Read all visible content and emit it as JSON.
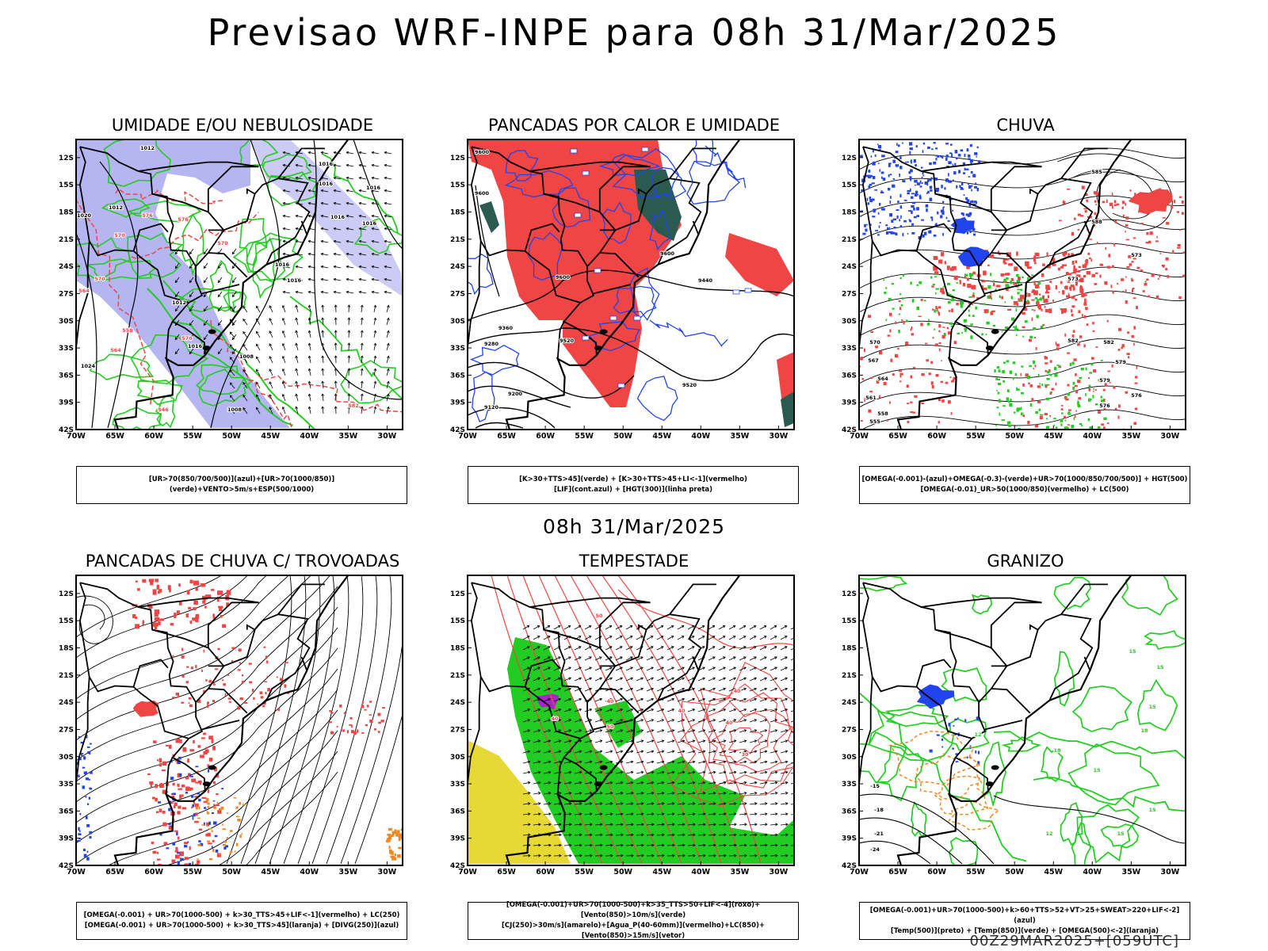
{
  "header": {
    "title": "Previsao WRF-INPE  para 08h 31/Mar/2025"
  },
  "section_title": "08h 31/Mar/2025",
  "footer": "00Z29MAR2025+[059UTC]",
  "axes": {
    "lat_labels": [
      "12S",
      "15S",
      "18S",
      "21S",
      "24S",
      "27S",
      "30S",
      "33S",
      "36S",
      "39S",
      "42S"
    ],
    "lon_labels": [
      "70W",
      "65W",
      "60W",
      "55W",
      "50W",
      "45W",
      "40W",
      "35W",
      "30W"
    ]
  },
  "colors": {
    "red": "#f04545",
    "green": "#22cc22",
    "blue": "#2244ee",
    "lavender": "#a8a8ee",
    "yellow": "#e6d835",
    "orange": "#ee8822",
    "teal": "#2a5a50",
    "magenta": "#aa22cc"
  },
  "panels": [
    {
      "id": "p1",
      "title": "UMIDADE E/OU NEBULOSIDADE",
      "caption": [
        "[UR>70(850/700/500)](azul)+[UR>70(1000/850)](verde)+VENTO>5m/s+ESP(500/1000)"
      ],
      "contour_labels": [
        "1012",
        "1016",
        "1016",
        "1016",
        "1016",
        "1020",
        "1012",
        "1016",
        "1016",
        "1024",
        "1012",
        "1016",
        "1008",
        "1016",
        "1008"
      ],
      "red_labels": [
        "576",
        "570",
        "570",
        "570",
        "576",
        "564",
        "558",
        "570",
        "564",
        "582",
        "546"
      ]
    },
    {
      "id": "p2",
      "title": "PANCADAS POR CALOR E UMIDADE",
      "caption": [
        "[K>30+TTS>45](verde) + [K>30+TTS>45+LI<-1](vermelho)",
        "[LIF](cont.azul) + [HGT(300)](linha preta)"
      ],
      "contour_labels": [
        "9600",
        "9600",
        "9600",
        "9600",
        "9440",
        "9360",
        "9280",
        "9520",
        "9200",
        "9120",
        "9520"
      ]
    },
    {
      "id": "p3",
      "title": "CHUVA",
      "caption": [
        "[OMEGA(-0.001)-(azul)+OMEGA(-0.3)-(verde)+UR>70(1000/850/700/500)] + HGT(500)",
        "[OMEGA(-0.01)_UR>50(1000/850)(vermelho) + LC(500)"
      ],
      "contour_labels": [
        "585",
        "588",
        "582",
        "579",
        "576",
        "573",
        "570",
        "567",
        "564",
        "561",
        "558",
        "555",
        "582",
        "579",
        "576",
        "573"
      ]
    },
    {
      "id": "p4",
      "title": "PANCADAS DE CHUVA C/ TROVOADAS",
      "caption": [
        "[OMEGA(-0.001) + UR>70(1000-500) + k>30_TTS>45+LIF<-1](vermelho) + LC(250)",
        "[OMEGA(-0.001) + UR>70(1000-500) + k>30_TTS>45](laranja) + [DIVG(250)](azul)"
      ]
    },
    {
      "id": "p5",
      "title": "TEMPESTADE",
      "caption": [
        "[OMEGA(-0.001)+UR>70(1000-500)+k>35_TTS>50+LIF<-4](roxo)+[Vento(850)>10m/s](verde)",
        "[CJ(250)>30m/s](amarelo)+[Agua_P(40-60mm)](vermelho)+LC(850)+[Vento(850)>15m/s](vetor)"
      ],
      "contour_labels": [
        "50",
        "40",
        "40",
        "50",
        "40",
        "40",
        "40",
        "30"
      ]
    },
    {
      "id": "p6",
      "title": "GRANIZO",
      "caption": [
        "[OMEGA(-0.001)+UR>70(1000-500)+k>60+TTS>52+VT>25+SWEAT>220+LIF<-2](azul)",
        "[Temp(500)](preto) + [Temp(850)](verde) + [OMEGA(500)<-2](laranja)"
      ],
      "contour_labels": [
        "15",
        "15",
        "15",
        "18",
        "12",
        "15",
        "18",
        "-15",
        "-18",
        "-21",
        "-24",
        "12",
        "15",
        "15"
      ]
    }
  ]
}
